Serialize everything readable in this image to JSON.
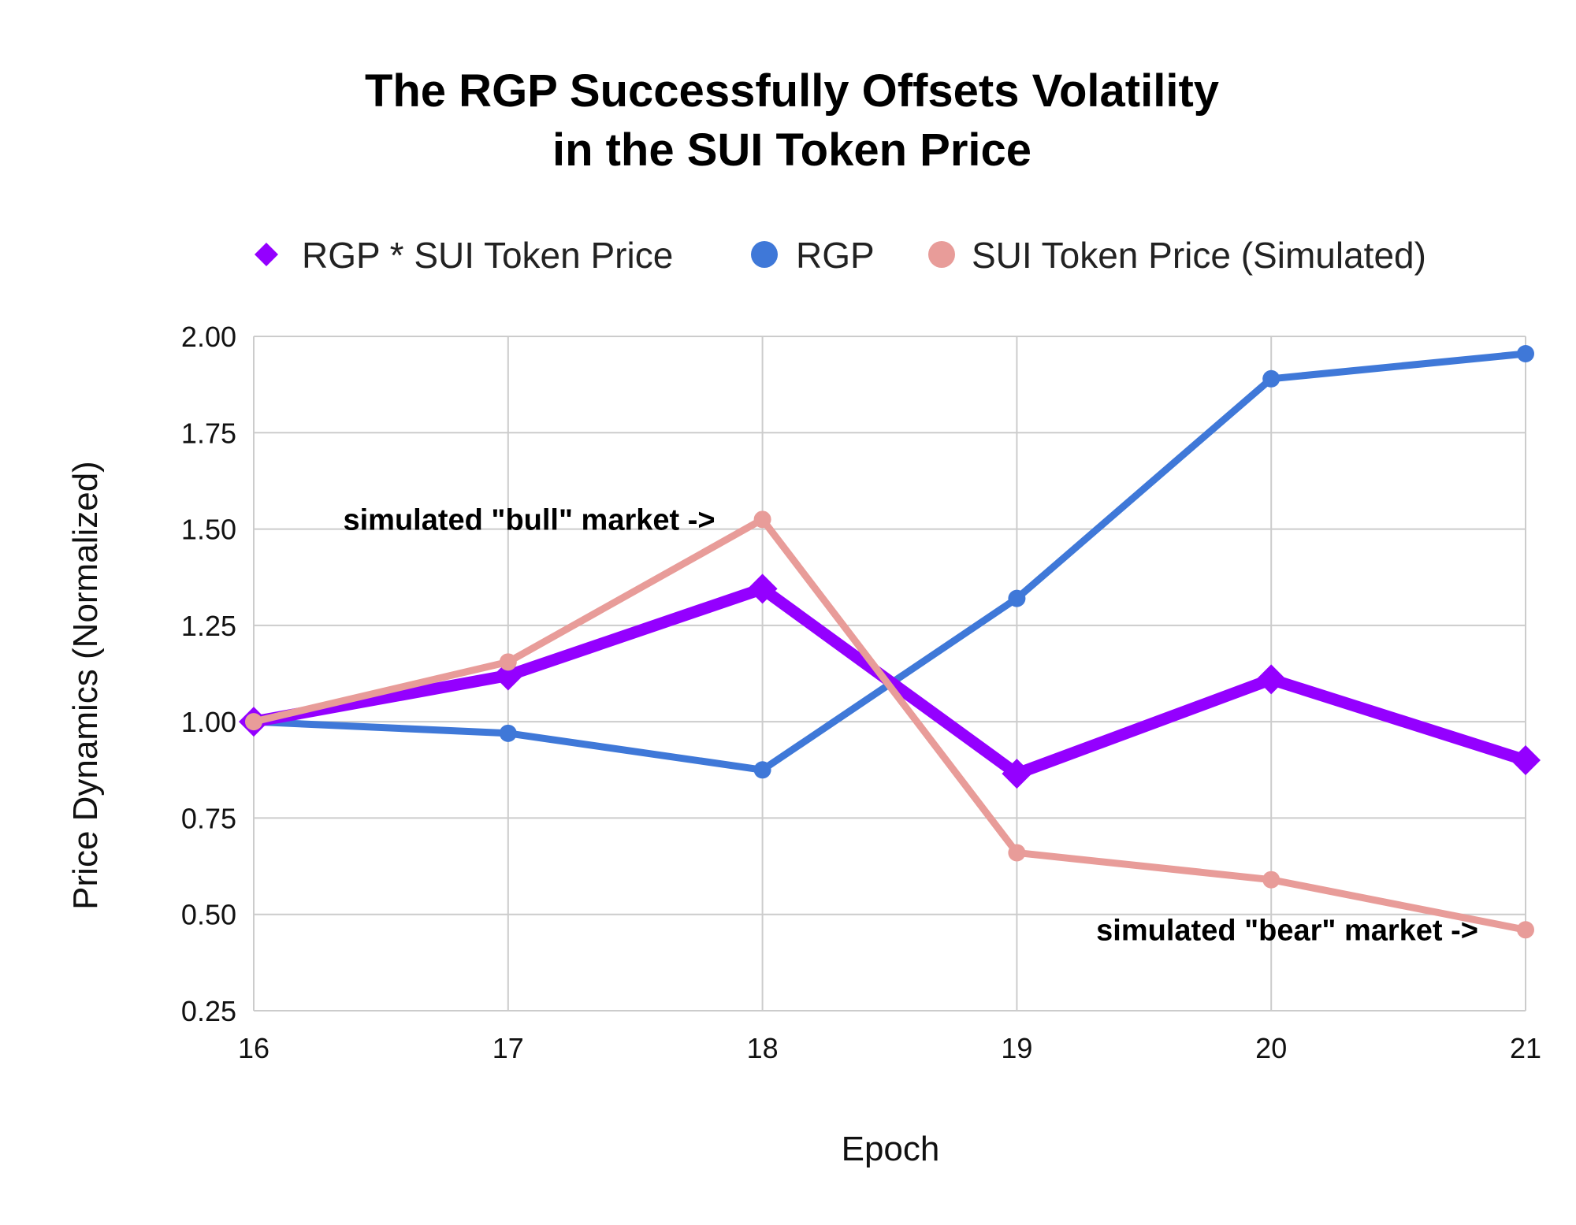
{
  "chart_data": {
    "type": "line",
    "title_lines": [
      "The RGP Successfully Offsets Volatility",
      "in the SUI Token Price"
    ],
    "xlabel": "Epoch",
    "ylabel": "Price Dynamics (Normalized)",
    "x": [
      16,
      17,
      18,
      19,
      20,
      21
    ],
    "x_tick_labels": [
      "16",
      "17",
      "18",
      "19",
      "20",
      "21"
    ],
    "xlim": [
      16,
      21
    ],
    "ylim": [
      0.25,
      2.0
    ],
    "y_ticks": [
      0.25,
      0.5,
      0.75,
      1.0,
      1.25,
      1.5,
      1.75,
      2.0
    ],
    "y_tick_labels": [
      "0.25",
      "0.50",
      "0.75",
      "1.00",
      "1.25",
      "1.50",
      "1.75",
      "2.00"
    ],
    "grid": true,
    "legend_position": "top",
    "series": [
      {
        "name": "RGP * SUI Token Price",
        "color": "#9400ff",
        "marker": "diamond",
        "emphasis": "thick",
        "values": [
          1.0,
          1.12,
          1.345,
          0.865,
          1.11,
          0.9
        ]
      },
      {
        "name": "RGP",
        "color": "#3f78d8",
        "marker": "circle",
        "emphasis": "normal",
        "values": [
          1.0,
          0.97,
          0.875,
          1.32,
          1.89,
          1.955
        ]
      },
      {
        "name": "SUI Token Price (Simulated)",
        "color": "#e89c99",
        "marker": "circle",
        "emphasis": "normal",
        "values": [
          1.0,
          1.155,
          1.525,
          0.66,
          0.59,
          0.46
        ]
      }
    ],
    "annotations": [
      {
        "text": "simulated \"bull\" market ->",
        "x": 18,
        "y": 1.525,
        "anchor": "left-of-point"
      },
      {
        "text": "simulated \"bear\" market ->",
        "x": 21,
        "y": 0.46,
        "anchor": "left-of-point"
      }
    ]
  }
}
